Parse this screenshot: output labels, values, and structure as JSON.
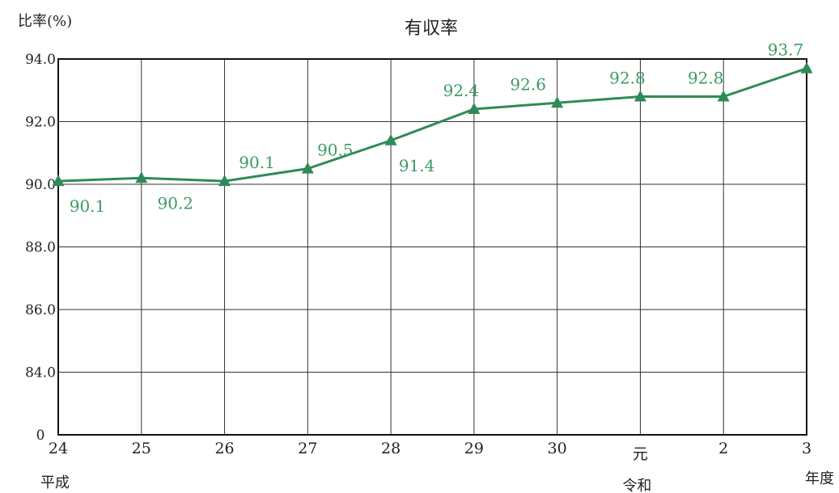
{
  "chart_data": {
    "type": "line",
    "title": "有収率",
    "ylabel": "比率(%)",
    "xlabel": "年度",
    "x": [
      "24",
      "25",
      "26",
      "27",
      "28",
      "29",
      "30",
      "元",
      "2",
      "3"
    ],
    "era_labels": [
      {
        "label": "平成",
        "at": "24"
      },
      {
        "label": "令和",
        "at": "元"
      }
    ],
    "series": [
      {
        "values": [
          90.1,
          90.2,
          90.1,
          90.5,
          91.4,
          92.4,
          92.6,
          92.8,
          92.8,
          93.7
        ],
        "data_labels": [
          "90.1",
          "90.2",
          "90.1",
          "90.5",
          "91.4",
          "92.4",
          "92.6",
          "92.8",
          "92.8",
          "93.7"
        ],
        "marker": "triangle",
        "color": "#2e8b57"
      }
    ],
    "yticks": [
      "0",
      "84.0",
      "86.0",
      "88.0",
      "90.0",
      "92.0",
      "94.0"
    ],
    "ylim": [
      82,
      94
    ],
    "axis_break": true,
    "grid": true,
    "legend": "none"
  }
}
